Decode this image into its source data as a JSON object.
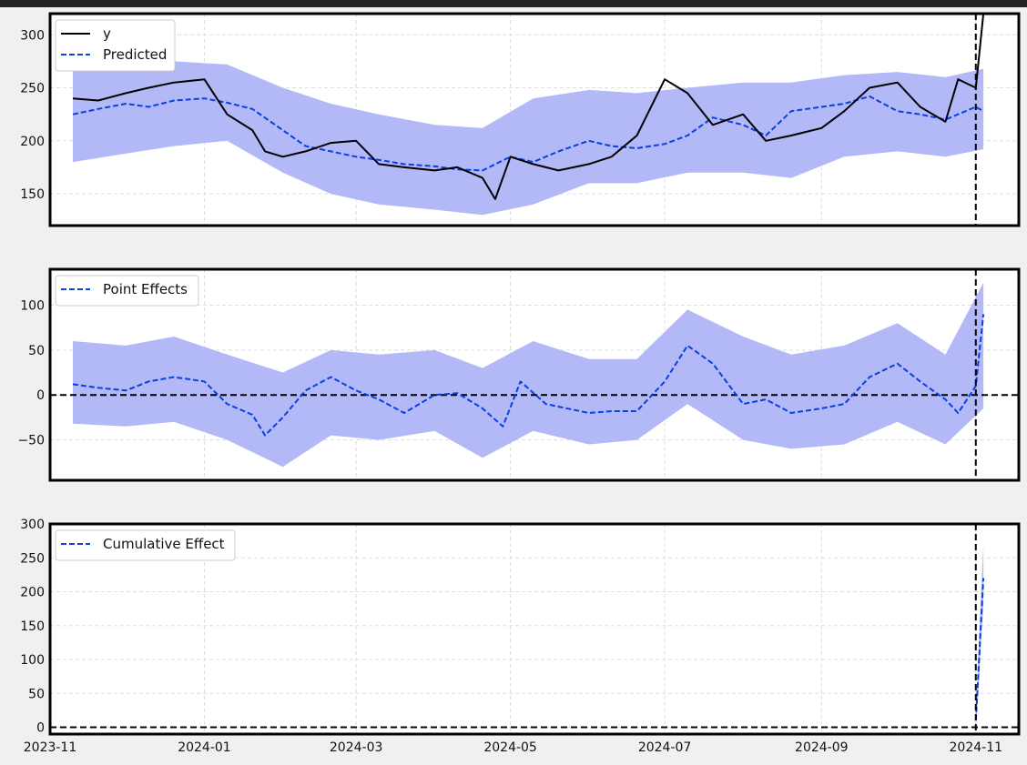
{
  "colors": {
    "figure_bg": "#f0f0f0",
    "top_bar": "#222222",
    "band": "#b3b8f7",
    "predicted": "#0a3fe0",
    "actual": "#000000",
    "grid": "#dddddd"
  },
  "chart_data": [
    {
      "type": "line",
      "panel": "original",
      "xlim": [
        "2023-11-01",
        "2024-11-18"
      ],
      "ylim": [
        120,
        320
      ],
      "yticks": [
        150,
        200,
        250,
        300
      ],
      "grid": true,
      "legend_placement": "top-left",
      "intervention_date": "2024-11-01",
      "series": [
        {
          "name": "y",
          "style": "solid",
          "x": [
            "2023-11-10",
            "2023-11-20",
            "2023-12-01",
            "2023-12-10",
            "2023-12-20",
            "2024-01-01",
            "2024-01-10",
            "2024-01-20",
            "2024-01-25",
            "2024-02-01",
            "2024-02-10",
            "2024-02-20",
            "2024-03-01",
            "2024-03-10",
            "2024-03-20",
            "2024-04-01",
            "2024-04-10",
            "2024-04-20",
            "2024-04-25",
            "2024-05-01",
            "2024-05-10",
            "2024-05-20",
            "2024-06-01",
            "2024-06-10",
            "2024-06-20",
            "2024-07-01",
            "2024-07-10",
            "2024-07-20",
            "2024-08-01",
            "2024-08-10",
            "2024-08-20",
            "2024-09-01",
            "2024-09-10",
            "2024-09-20",
            "2024-10-01",
            "2024-10-10",
            "2024-10-20",
            "2024-10-25",
            "2024-11-01",
            "2024-11-04"
          ],
          "y": [
            240,
            238,
            245,
            250,
            255,
            258,
            225,
            210,
            190,
            185,
            190,
            198,
            200,
            178,
            175,
            172,
            175,
            165,
            145,
            185,
            178,
            172,
            178,
            185,
            205,
            258,
            245,
            215,
            225,
            200,
            205,
            212,
            228,
            250,
            255,
            232,
            218,
            258,
            250,
            320
          ]
        },
        {
          "name": "Predicted",
          "style": "dashed",
          "x": [
            "2023-11-10",
            "2023-11-20",
            "2023-12-01",
            "2023-12-10",
            "2023-12-20",
            "2024-01-01",
            "2024-01-10",
            "2024-01-20",
            "2024-02-01",
            "2024-02-10",
            "2024-02-20",
            "2024-03-01",
            "2024-03-10",
            "2024-03-20",
            "2024-04-01",
            "2024-04-10",
            "2024-04-20",
            "2024-05-01",
            "2024-05-10",
            "2024-05-20",
            "2024-06-01",
            "2024-06-10",
            "2024-06-20",
            "2024-07-01",
            "2024-07-10",
            "2024-07-20",
            "2024-08-01",
            "2024-08-10",
            "2024-08-20",
            "2024-09-01",
            "2024-09-10",
            "2024-09-20",
            "2024-10-01",
            "2024-10-10",
            "2024-10-20",
            "2024-11-01",
            "2024-11-04"
          ],
          "y": [
            225,
            230,
            235,
            232,
            238,
            240,
            236,
            230,
            210,
            195,
            190,
            185,
            182,
            178,
            176,
            173,
            172,
            185,
            180,
            190,
            200,
            195,
            193,
            197,
            205,
            222,
            215,
            205,
            228,
            232,
            235,
            242,
            228,
            225,
            220,
            232,
            228
          ]
        }
      ],
      "band": {
        "x": [
          "2023-11-10",
          "2023-12-01",
          "2023-12-20",
          "2024-01-10",
          "2024-02-01",
          "2024-02-20",
          "2024-03-10",
          "2024-04-01",
          "2024-04-20",
          "2024-05-10",
          "2024-06-01",
          "2024-06-20",
          "2024-07-10",
          "2024-08-01",
          "2024-08-20",
          "2024-09-10",
          "2024-10-01",
          "2024-10-20",
          "2024-11-04"
        ],
        "lower": [
          180,
          188,
          195,
          200,
          170,
          150,
          140,
          135,
          130,
          140,
          160,
          160,
          170,
          170,
          165,
          185,
          190,
          185,
          192
        ],
        "upper": [
          268,
          270,
          275,
          272,
          250,
          235,
          225,
          215,
          212,
          240,
          248,
          245,
          250,
          255,
          255,
          262,
          265,
          260,
          268
        ]
      }
    },
    {
      "type": "line",
      "panel": "pointwise",
      "xlim": [
        "2023-11-01",
        "2024-11-18"
      ],
      "ylim": [
        -95,
        140
      ],
      "yticks": [
        -50,
        0,
        50,
        100
      ],
      "grid": true,
      "legend_placement": "top-left",
      "intervention_date": "2024-11-01",
      "series": [
        {
          "name": "Point Effects",
          "style": "dashed",
          "x": [
            "2023-11-10",
            "2023-11-20",
            "2023-12-01",
            "2023-12-10",
            "2023-12-20",
            "2024-01-01",
            "2024-01-10",
            "2024-01-20",
            "2024-01-25",
            "2024-02-01",
            "2024-02-10",
            "2024-02-20",
            "2024-03-01",
            "2024-03-10",
            "2024-03-20",
            "2024-04-01",
            "2024-04-10",
            "2024-04-20",
            "2024-04-28",
            "2024-05-05",
            "2024-05-15",
            "2024-06-01",
            "2024-06-10",
            "2024-06-20",
            "2024-07-01",
            "2024-07-10",
            "2024-07-20",
            "2024-08-01",
            "2024-08-10",
            "2024-08-20",
            "2024-09-01",
            "2024-09-10",
            "2024-09-20",
            "2024-10-01",
            "2024-10-10",
            "2024-10-20",
            "2024-10-25",
            "2024-11-01",
            "2024-11-04"
          ],
          "y": [
            12,
            8,
            5,
            15,
            20,
            15,
            -10,
            -22,
            -45,
            -25,
            5,
            20,
            5,
            -5,
            -20,
            0,
            2,
            -15,
            -35,
            15,
            -10,
            -20,
            -18,
            -18,
            15,
            55,
            35,
            -10,
            -5,
            -20,
            -15,
            -10,
            20,
            35,
            15,
            -5,
            -20,
            10,
            90
          ]
        }
      ],
      "baseline": 0,
      "band": {
        "x": [
          "2023-11-10",
          "2023-12-01",
          "2023-12-20",
          "2024-01-10",
          "2024-02-01",
          "2024-02-20",
          "2024-03-10",
          "2024-04-01",
          "2024-04-20",
          "2024-05-10",
          "2024-06-01",
          "2024-06-20",
          "2024-07-10",
          "2024-08-01",
          "2024-08-20",
          "2024-09-10",
          "2024-10-01",
          "2024-10-20",
          "2024-11-04"
        ],
        "lower": [
          -32,
          -35,
          -30,
          -50,
          -80,
          -45,
          -50,
          -40,
          -70,
          -40,
          -55,
          -50,
          -10,
          -50,
          -60,
          -55,
          -30,
          -55,
          -15
        ],
        "upper": [
          60,
          55,
          65,
          45,
          25,
          50,
          45,
          50,
          30,
          60,
          40,
          40,
          95,
          65,
          45,
          55,
          80,
          45,
          125
        ]
      }
    },
    {
      "type": "line",
      "panel": "cumulative",
      "xlim": [
        "2023-11-01",
        "2024-11-18"
      ],
      "ylim": [
        -10,
        300
      ],
      "yticks": [
        0,
        50,
        100,
        150,
        200,
        250,
        300
      ],
      "xticks": [
        "2023-11",
        "2024-01",
        "2024-03",
        "2024-05",
        "2024-07",
        "2024-09",
        "2024-11"
      ],
      "xtick_dates": [
        "2023-11-01",
        "2024-01-01",
        "2024-03-01",
        "2024-05-01",
        "2024-07-01",
        "2024-09-01",
        "2024-11-01"
      ],
      "grid": true,
      "legend_placement": "top-left",
      "intervention_date": "2024-11-01",
      "series": [
        {
          "name": "Cumulative Effect",
          "style": "dashed",
          "x": [
            "2024-11-01",
            "2024-11-02",
            "2024-11-03",
            "2024-11-04"
          ],
          "y": [
            10,
            80,
            150,
            220
          ]
        }
      ],
      "baseline": 0,
      "band": {
        "x": [
          "2024-11-01",
          "2024-11-02",
          "2024-11-03",
          "2024-11-04"
        ],
        "lower": [
          0,
          50,
          120,
          180
        ],
        "upper": [
          20,
          110,
          190,
          270
        ]
      }
    }
  ]
}
